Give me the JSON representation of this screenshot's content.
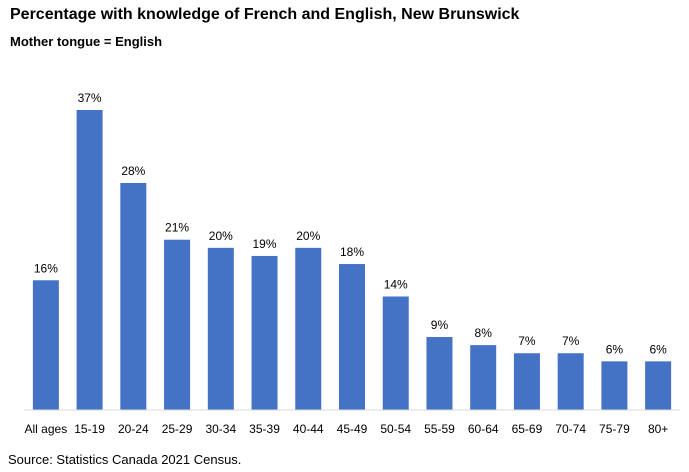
{
  "header": {
    "title": "Percentage with knowledge of French and English, New Brunswick",
    "subtitle": "Mother tongue = English"
  },
  "footer": {
    "source": "Source: Statistics Canada 2021 Census."
  },
  "colors": {
    "bar": "#4472C4",
    "axis": "#D9D9D9",
    "text": "#000000"
  },
  "chart_data": {
    "type": "bar",
    "title": "Percentage with knowledge of French and English, New Brunswick",
    "subtitle": "Mother tongue = English",
    "categories": [
      "All ages",
      "15-19",
      "20-24",
      "25-29",
      "30-34",
      "35-39",
      "40-44",
      "45-49",
      "50-54",
      "55-59",
      "60-64",
      "65-69",
      "70-74",
      "75-79",
      "80+"
    ],
    "values": [
      16,
      37,
      28,
      21,
      20,
      19,
      20,
      18,
      14,
      9,
      8,
      7,
      7,
      6,
      6
    ],
    "labels": [
      "16%",
      "37%",
      "28%",
      "21%",
      "20%",
      "19%",
      "20%",
      "18%",
      "14%",
      "9%",
      "8%",
      "7%",
      "7%",
      "6%",
      "6%"
    ],
    "unit": "%",
    "ylim": [
      0,
      37
    ],
    "grid": false,
    "legend": "none",
    "xlabel": "",
    "ylabel": ""
  }
}
